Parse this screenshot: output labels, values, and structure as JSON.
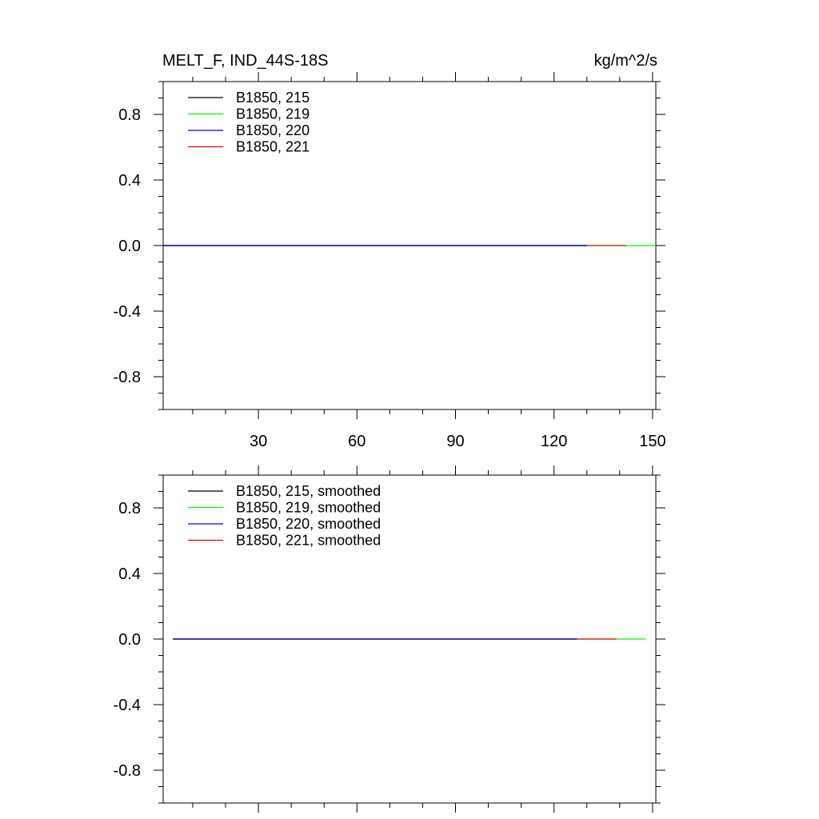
{
  "chart_data": [
    {
      "type": "line",
      "title": "MELT_F, IND_44S-18S",
      "units": "kg/m^2/s",
      "ylim": [
        -1,
        1
      ],
      "yticks": [
        0.8,
        0.4,
        0.0,
        -0.4,
        -0.8
      ],
      "ytick_labels": [
        "0.8",
        "0.4",
        "0.0",
        "-0.4",
        "-0.8"
      ],
      "xlim": [
        1,
        151
      ],
      "xticks": [
        30,
        60,
        90,
        120,
        150
      ],
      "xtick_labels": [
        "30",
        "60",
        "90",
        "120",
        "150"
      ],
      "show_xtick_labels": true,
      "legend_placement": "top-left",
      "series": [
        {
          "name": "B1850, 215",
          "color": "#000000",
          "x": [
            1,
            130
          ],
          "y": [
            0,
            0
          ]
        },
        {
          "name": "B1850, 219",
          "color": "#00ff00",
          "x": [
            1,
            151
          ],
          "y": [
            0,
            0
          ]
        },
        {
          "name": "B1850, 220",
          "color": "#0000ff",
          "x": [
            1,
            130
          ],
          "y": [
            0,
            0
          ]
        },
        {
          "name": "B1850, 221",
          "color": "#ff0000",
          "x": [
            1,
            142
          ],
          "y": [
            0,
            0
          ]
        }
      ]
    },
    {
      "type": "line",
      "title": "",
      "units": "",
      "ylim": [
        -1,
        1
      ],
      "yticks": [
        0.8,
        0.4,
        0.0,
        -0.4,
        -0.8
      ],
      "ytick_labels": [
        "0.8",
        "0.4",
        "0.0",
        "-0.4",
        "-0.8"
      ],
      "xlim": [
        1,
        151
      ],
      "xticks": [
        30,
        60,
        90,
        120,
        150
      ],
      "xtick_labels": [
        "30",
        "60",
        "90",
        "120",
        "150"
      ],
      "show_xtick_labels": false,
      "legend_placement": "top-left",
      "series": [
        {
          "name": "B1850, 215, smoothed",
          "color": "#000000",
          "x": [
            4,
            127
          ],
          "y": [
            0,
            0
          ]
        },
        {
          "name": "B1850, 219, smoothed",
          "color": "#00ff00",
          "x": [
            4,
            148
          ],
          "y": [
            0,
            0
          ]
        },
        {
          "name": "B1850, 220, smoothed",
          "color": "#0000ff",
          "x": [
            4,
            127
          ],
          "y": [
            0,
            0
          ]
        },
        {
          "name": "B1850, 221, smoothed",
          "color": "#ff0000",
          "x": [
            4,
            139
          ],
          "y": [
            0,
            0
          ]
        }
      ]
    }
  ]
}
